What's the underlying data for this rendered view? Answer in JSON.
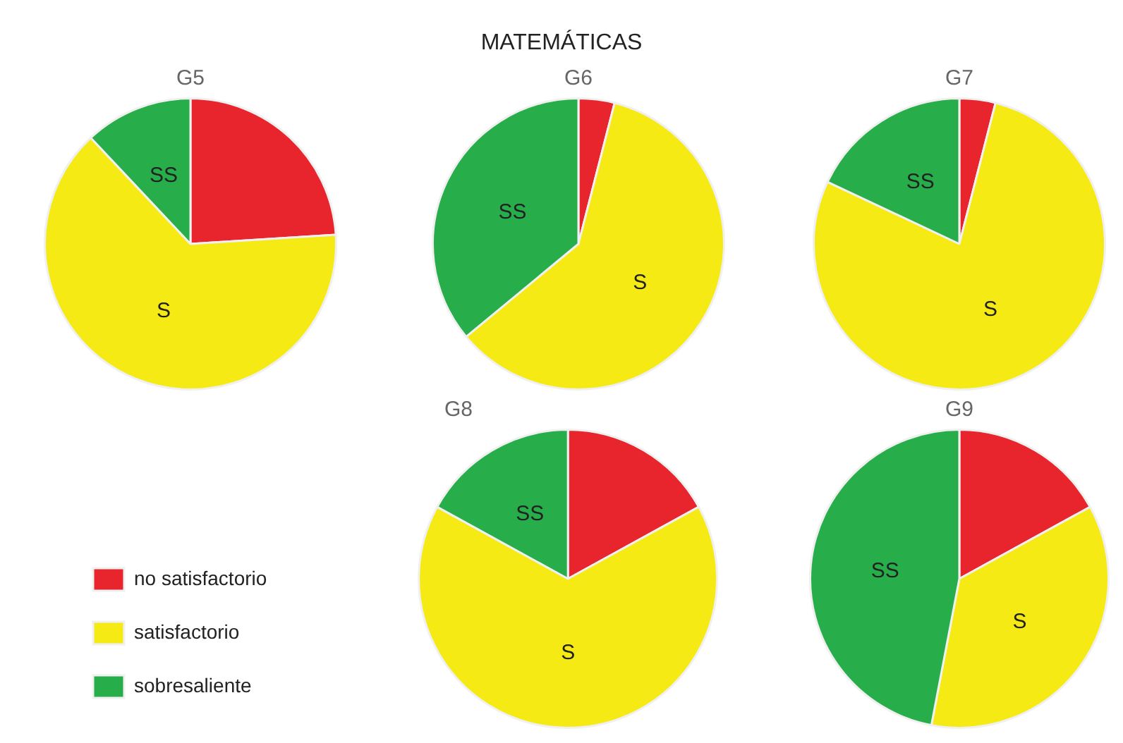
{
  "chart_data": [
    {
      "type": "other",
      "title": "MATEMÁTICAS"
    },
    {
      "type": "pie",
      "title": "G5",
      "categories": [
        null,
        null,
        null
      ],
      "values": [
        24,
        64,
        12
      ],
      "colors": [
        "#e8242c",
        "#f5ea14",
        "#27ae4a"
      ],
      "value_labels": [
        null,
        "S",
        "SS"
      ]
    },
    {
      "type": "pie",
      "title": "G6",
      "categories": [
        null,
        null,
        null
      ],
      "values": [
        4,
        60,
        36
      ],
      "colors": [
        "#e8242c",
        "#f5ea14",
        "#27ae4a"
      ],
      "value_labels": [
        null,
        "S",
        "SS"
      ]
    },
    {
      "type": "pie",
      "title": "G7",
      "categories": [
        null,
        null,
        null
      ],
      "values": [
        4,
        78,
        18
      ],
      "colors": [
        "#e8242c",
        "#f5ea14",
        "#27ae4a"
      ],
      "value_labels": [
        null,
        "S",
        "SS"
      ]
    },
    {
      "type": "pie",
      "title": "G8",
      "categories": [
        "no satisfactorio",
        "satisfactorio",
        "sobresaliente"
      ],
      "values": [
        17,
        66,
        17
      ],
      "colors": [
        "#e8242c",
        "#f5ea14",
        "#27ae4a"
      ],
      "value_labels": [
        null,
        "S",
        "SS"
      ],
      "legend": "left"
    },
    {
      "type": "pie",
      "title": "G9",
      "categories": [
        null,
        null,
        null
      ],
      "values": [
        17,
        36,
        47
      ],
      "colors": [
        "#e8242c",
        "#f5ea14",
        "#27ae4a"
      ],
      "value_labels": [
        null,
        "S",
        "SS"
      ]
    }
  ]
}
